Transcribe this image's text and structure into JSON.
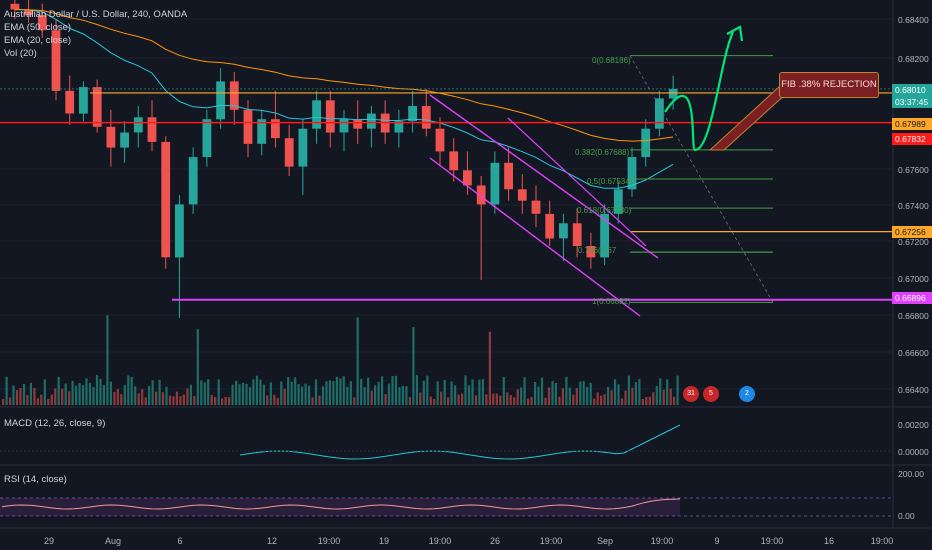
{
  "header": {
    "symbol_line": "Australian Dollar / U.S. Dollar, 240, OANDA",
    "indicators": [
      "EMA (50, close)",
      "EMA (20, close)",
      "Vol (20)"
    ]
  },
  "sub_panels": {
    "macd_label": "MACD (12, 26, close, 9)",
    "rsi_label": "RSI (14, close)",
    "macd_ticks": [
      "0.00200",
      "0.00000"
    ],
    "rsi_ticks": [
      "200.00",
      "0.00"
    ]
  },
  "price_axis": {
    "ticks": [
      "0.68400",
      "0.68200",
      "0.67600",
      "0.67400",
      "0.67200",
      "0.67000",
      "0.66800",
      "0.66600",
      "0.66400"
    ],
    "tags": {
      "current_price": "0.68010",
      "countdown": "03:37:45",
      "orange_line": "0.67989",
      "red_line": "0.67832",
      "orange_line_2": "0.67256",
      "magenta_line": "0.66896"
    }
  },
  "time_axis": [
    "29",
    "Aug",
    "6",
    "12",
    "19:00",
    "19",
    "19:00",
    "26",
    "19:00",
    "Sep",
    "19:00",
    "9",
    "19:00",
    "16",
    "19:00"
  ],
  "annotations": {
    "rejection_label": "FIB .38% REJECTION",
    "fib_levels": [
      "0(0.68186)",
      "0.382(0.67688)",
      "0.5(0.67534)",
      "0.618(0.67380)",
      "0.786(0.67",
      "1(0.66882)"
    ],
    "event_badges": [
      "31",
      "5",
      "2"
    ]
  },
  "colors": {
    "background": "#131722",
    "up": "#26a69a",
    "down": "#ef5350",
    "ema50": "#ff9800",
    "ema20": "#26c6da",
    "fib": "#43a047",
    "channel": "#e040fb",
    "red_line": "#ff1a1a",
    "orange_line": "#ffa726",
    "magenta_line": "#e040fb",
    "projection": "#00e676"
  },
  "chart_data": {
    "type": "candlestick",
    "symbol": "Australian Dollar / U.S. Dollar",
    "timeframe": "240",
    "source": "OANDA",
    "ylim": [
      0.6634,
      0.6848
    ],
    "series": [
      {
        "name": "EMA (50, close)"
      },
      {
        "name": "EMA (20, close)"
      },
      {
        "name": "Vol (20)"
      }
    ],
    "price_path": [
      [
        0.6846,
        0.6849,
        0.6838,
        0.6843
      ],
      [
        0.6843,
        0.6848,
        0.6836,
        0.684
      ],
      [
        0.684,
        0.6846,
        0.6828,
        0.6832
      ],
      [
        0.6832,
        0.6838,
        0.6795,
        0.68
      ],
      [
        0.68,
        0.6808,
        0.6782,
        0.6788
      ],
      [
        0.6788,
        0.6805,
        0.6784,
        0.6802
      ],
      [
        0.6802,
        0.6806,
        0.6778,
        0.6781
      ],
      [
        0.6781,
        0.679,
        0.676,
        0.677
      ],
      [
        0.677,
        0.6784,
        0.6762,
        0.6778
      ],
      [
        0.6778,
        0.6792,
        0.677,
        0.6786
      ],
      [
        0.6786,
        0.6795,
        0.6768,
        0.6773
      ],
      [
        0.6773,
        0.6776,
        0.6706,
        0.6712
      ],
      [
        0.6712,
        0.6745,
        0.668,
        0.674
      ],
      [
        0.674,
        0.677,
        0.6735,
        0.6765
      ],
      [
        0.6765,
        0.679,
        0.676,
        0.6785
      ],
      [
        0.6785,
        0.6812,
        0.678,
        0.6805
      ],
      [
        0.6805,
        0.681,
        0.6782,
        0.679
      ],
      [
        0.679,
        0.6795,
        0.6765,
        0.6772
      ],
      [
        0.6772,
        0.679,
        0.6766,
        0.6785
      ],
      [
        0.6785,
        0.68,
        0.677,
        0.6775
      ],
      [
        0.6775,
        0.6782,
        0.6755,
        0.676
      ],
      [
        0.676,
        0.6785,
        0.6745,
        0.678
      ],
      [
        0.678,
        0.68,
        0.6772,
        0.6795
      ],
      [
        0.6795,
        0.68,
        0.677,
        0.6778
      ],
      [
        0.6778,
        0.679,
        0.6768,
        0.6785
      ],
      [
        0.6785,
        0.6795,
        0.6772,
        0.678
      ],
      [
        0.678,
        0.6792,
        0.677,
        0.6788
      ],
      [
        0.6788,
        0.6795,
        0.6772,
        0.6778
      ],
      [
        0.6778,
        0.679,
        0.677,
        0.6784
      ],
      [
        0.6784,
        0.68,
        0.6778,
        0.6792
      ],
      [
        0.6792,
        0.6801,
        0.6776,
        0.678
      ],
      [
        0.678,
        0.6786,
        0.676,
        0.6768
      ],
      [
        0.6768,
        0.6775,
        0.6752,
        0.6758
      ],
      [
        0.6758,
        0.6768,
        0.6745,
        0.675
      ],
      [
        0.675,
        0.6755,
        0.67,
        0.674
      ],
      [
        0.674,
        0.6768,
        0.6735,
        0.6762
      ],
      [
        0.6762,
        0.677,
        0.6742,
        0.6748
      ],
      [
        0.6748,
        0.6756,
        0.6735,
        0.6742
      ],
      [
        0.6742,
        0.675,
        0.6728,
        0.6735
      ],
      [
        0.6735,
        0.6742,
        0.6718,
        0.6722
      ],
      [
        0.6722,
        0.6735,
        0.671,
        0.673
      ],
      [
        0.673,
        0.6738,
        0.6712,
        0.6718
      ],
      [
        0.6718,
        0.6725,
        0.6706,
        0.6712
      ],
      [
        0.6712,
        0.674,
        0.6708,
        0.6735
      ],
      [
        0.6735,
        0.6752,
        0.673,
        0.6748
      ],
      [
        0.6748,
        0.677,
        0.6744,
        0.6765
      ],
      [
        0.6765,
        0.6785,
        0.676,
        0.678
      ],
      [
        0.678,
        0.68,
        0.6776,
        0.6796
      ],
      [
        0.6796,
        0.6808,
        0.679,
        0.6801
      ]
    ]
  }
}
